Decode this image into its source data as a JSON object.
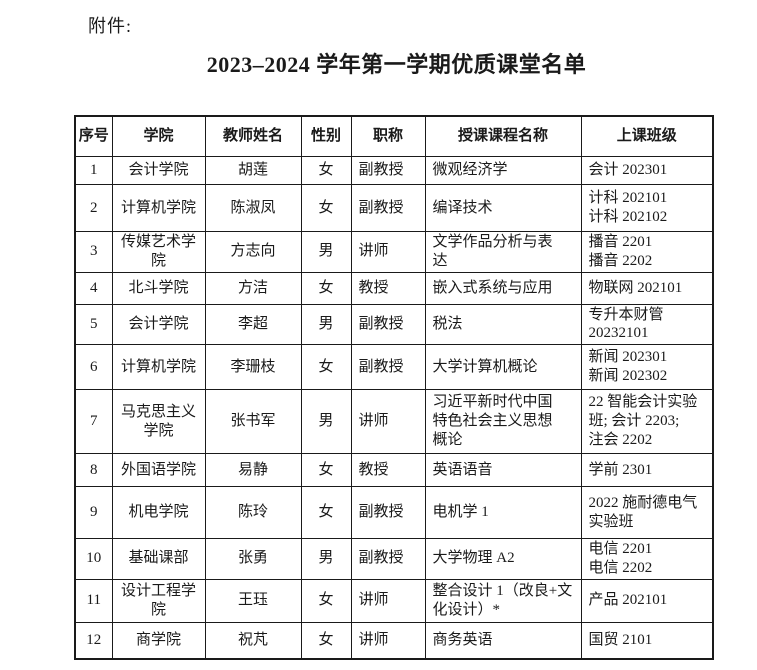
{
  "page": {
    "attachment_label": "附件:",
    "title": "2023–2024 学年第一学期优质课堂名单"
  },
  "table": {
    "headers": [
      "序号",
      "学院",
      "教师姓名",
      "性别",
      "职称",
      "授课课程名称",
      "上课班级"
    ],
    "rows": [
      {
        "no": "1",
        "college": "会计学院",
        "teacher": "胡莲",
        "gender": "女",
        "title": "副教授",
        "course": "微观经济学",
        "classes": "会计 202301"
      },
      {
        "no": "2",
        "college": "计算机学院",
        "teacher": "陈淑凤",
        "gender": "女",
        "title": "副教授",
        "course": "编译技术",
        "classes": "计科 202101\n计科 202102"
      },
      {
        "no": "3",
        "college": "传媒艺术学\n院",
        "teacher": "方志向",
        "gender": "男",
        "title": "讲师",
        "course": "文学作品分析与表\n达",
        "classes": "播音 2201\n播音 2202"
      },
      {
        "no": "4",
        "college": "北斗学院",
        "teacher": "方洁",
        "gender": "女",
        "title": "教授",
        "course": "嵌入式系统与应用",
        "classes": "物联网 202101"
      },
      {
        "no": "5",
        "college": "会计学院",
        "teacher": "李超",
        "gender": "男",
        "title": "副教授",
        "course": "税法",
        "classes": "专升本财管\n20232101"
      },
      {
        "no": "6",
        "college": "计算机学院",
        "teacher": "李珊枝",
        "gender": "女",
        "title": "副教授",
        "course": "大学计算机概论",
        "classes": "新闻 202301\n新闻 202302"
      },
      {
        "no": "7",
        "college": "马克思主义\n学院",
        "teacher": "张书军",
        "gender": "男",
        "title": "讲师",
        "course": "习近平新时代中国\n特色社会主义思想\n概论",
        "classes": "22 智能会计实验\n班; 会计 2203;\n注会 2202"
      },
      {
        "no": "8",
        "college": "外国语学院",
        "teacher": "易静",
        "gender": "女",
        "title": "教授",
        "course": "英语语音",
        "classes": "学前 2301"
      },
      {
        "no": "9",
        "college": "机电学院",
        "teacher": "陈玲",
        "gender": "女",
        "title": "副教授",
        "course": "电机学 1",
        "classes": "2022 施耐德电气\n实验班"
      },
      {
        "no": "10",
        "college": "基础课部",
        "teacher": "张勇",
        "gender": "男",
        "title": "副教授",
        "course": "大学物理 A2",
        "classes": "电信 2201\n电信 2202"
      },
      {
        "no": "11",
        "college": "设计工程学\n院",
        "teacher": "王珏",
        "gender": "女",
        "title": "讲师",
        "course": "整合设计 1（改良+文\n化设计）*",
        "classes": "产品 202101"
      },
      {
        "no": "12",
        "college": "商学院",
        "teacher": "祝芃",
        "gender": "女",
        "title": "讲师",
        "course": "商务英语",
        "classes": "国贸 2101"
      }
    ]
  }
}
